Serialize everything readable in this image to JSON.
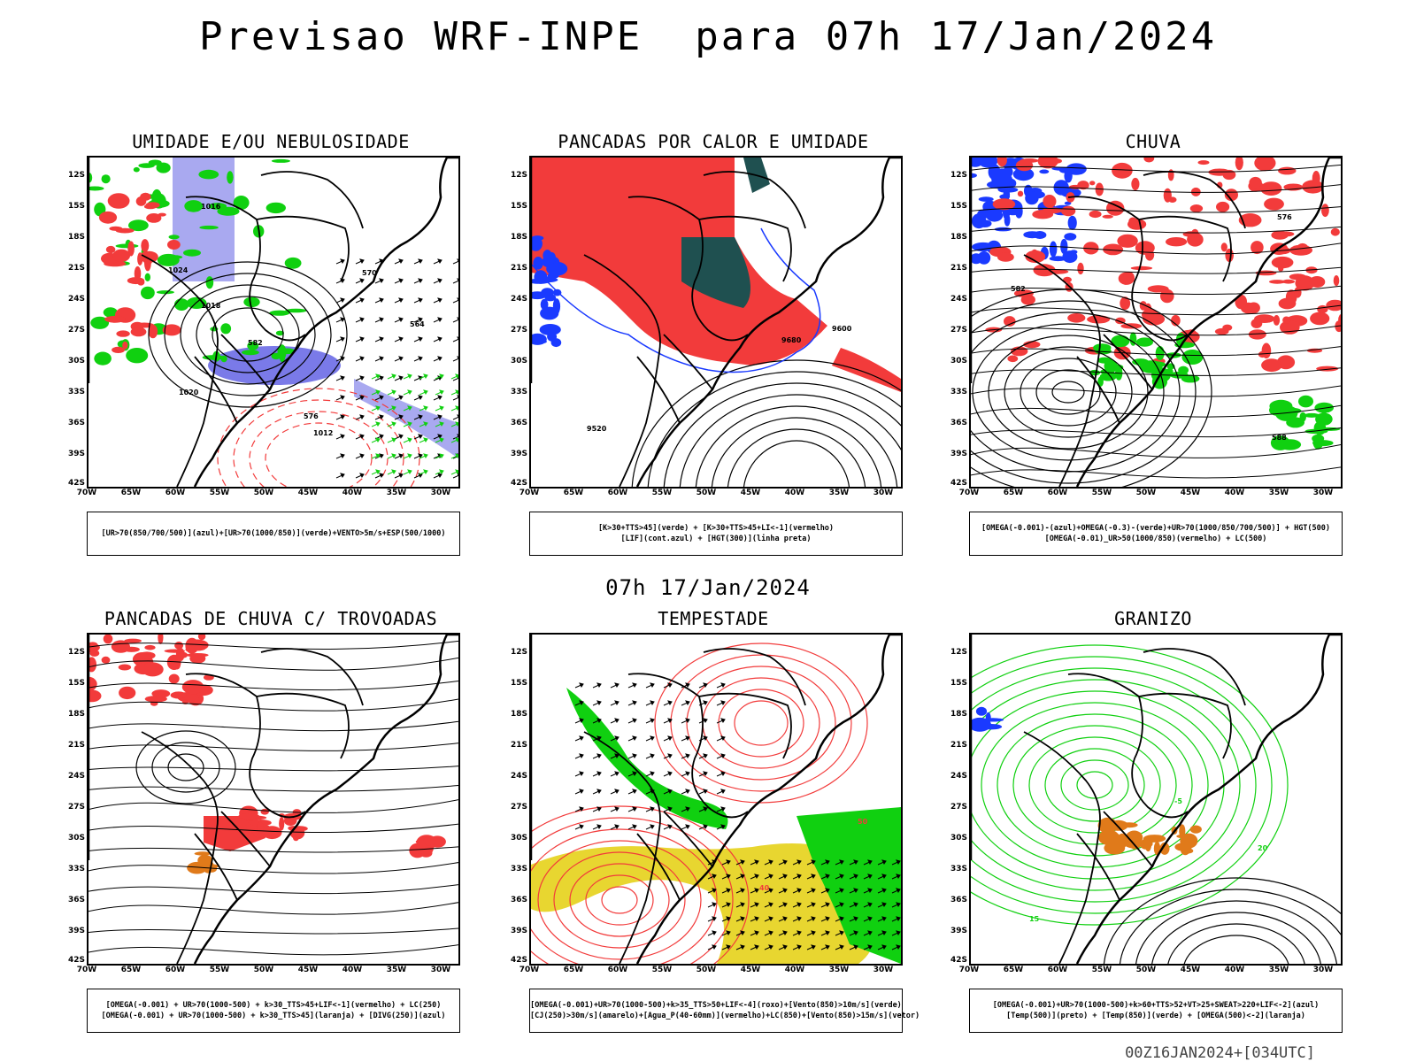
{
  "title": "Previsao WRF-INPE  para 07h 17/Jan/2024",
  "mid_title": "07h 17/Jan/2024",
  "footer": "00Z16JAN2024+[034UTC]",
  "lat_labels": [
    "12S",
    "15S",
    "18S",
    "21S",
    "24S",
    "27S",
    "30S",
    "33S",
    "36S",
    "39S",
    "42S"
  ],
  "lon_labels": [
    "70W",
    "65W",
    "60W",
    "55W",
    "50W",
    "45W",
    "40W",
    "35W",
    "30W"
  ],
  "colors": {
    "red": "#f23b3b",
    "green": "#10d010",
    "blue": "#1a3aff",
    "lavender": "#a9a9f0",
    "dark_teal": "#1f5050",
    "yellow": "#e8d630",
    "orange": "#e07a1a",
    "purple": "#9b30ff"
  },
  "panels": [
    {
      "id": "umidade",
      "title": "UMIDADE E/OU NEBULOSIDADE",
      "legend": [
        "[UR>70(850/700/500)](azul)+[UR>70(1000/850)](verde)+VENTO>5m/s+ESP(500/1000)"
      ],
      "contour_labels": [
        "1012",
        "1016",
        "1020",
        "1024",
        "570",
        "576",
        "564",
        "1018",
        "582"
      ]
    },
    {
      "id": "pancadas-calor",
      "title": "PANCADAS POR CALOR E UMIDADE",
      "legend": [
        "[K>30+TTS>45](verde) + [K>30+TTS>45+LI<-1](vermelho)",
        "[LIF](cont.azul) + [HGT(300)](linha preta)"
      ],
      "contour_labels": [
        "9680",
        "9600",
        "9520"
      ]
    },
    {
      "id": "chuva",
      "title": "CHUVA",
      "legend": [
        "[OMEGA(-0.001)-(azul)+OMEGA(-0.3)-(verde)+UR>70(1000/850/700/500)] + HGT(500)",
        "[OMEGA(-0.01)_UR>50(1000/850)(vermelho) + LC(500)"
      ],
      "contour_labels": [
        "588",
        "582",
        "576"
      ]
    },
    {
      "id": "pancadas-trovoadas",
      "title": "PANCADAS DE CHUVA C/ TROVOADAS",
      "legend": [
        "[OMEGA(-0.001) + UR>70(1000-500) + k>30_TTS>45+LIF<-1](vermelho) + LC(250)",
        "[OMEGA(-0.001) + UR>70(1000-500) + k>30_TTS>45](laranja) + [DIVG(250)](azul)"
      ],
      "contour_labels": []
    },
    {
      "id": "tempestade",
      "title": "TEMPESTADE",
      "legend": [
        "[OMEGA(-0.001)+UR>70(1000-500)+k>35_TTS>50+LIF<-4](roxo)+[Vento(850)>10m/s](verde)",
        "[CJ(250)>30m/s](amarelo)+[Agua_P(40-60mm)](vermelho)+LC(850)+[Vento(850)>15m/s](vetor)"
      ],
      "contour_labels": [
        "50",
        "40"
      ]
    },
    {
      "id": "granizo",
      "title": "GRANIZO",
      "legend": [
        "[OMEGA(-0.001)+UR>70(1000-500)+k>60+TTS>52+VT>25+SWEAT>220+LIF<-2](azul)",
        "[Temp(500)](preto) + [Temp(850)](verde) + [OMEGA(500)<-2](laranja)"
      ],
      "contour_labels": [
        "15",
        "20",
        "-5"
      ]
    }
  ]
}
